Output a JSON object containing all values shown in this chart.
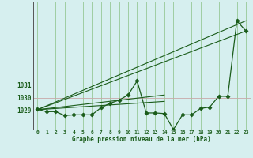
{
  "hours": [
    0,
    1,
    2,
    3,
    4,
    5,
    6,
    7,
    8,
    9,
    10,
    11,
    12,
    13,
    14,
    15,
    16,
    17,
    18,
    19,
    20,
    21,
    22,
    23
  ],
  "main_line": [
    1029.1,
    1028.9,
    1028.9,
    1028.6,
    1028.65,
    1028.65,
    1028.65,
    1029.2,
    1029.55,
    1029.8,
    1030.2,
    1031.3,
    1028.8,
    1028.8,
    1028.75,
    1027.5,
    1028.65,
    1028.65,
    1029.15,
    1029.25,
    1030.1,
    1030.1,
    1036.0,
    1035.2
  ],
  "trend1_x": [
    0,
    23
  ],
  "trend1_y": [
    1029.05,
    1035.2
  ],
  "trend2_x": [
    0,
    23
  ],
  "trend2_y": [
    1029.05,
    1036.0
  ],
  "trend3_x": [
    0,
    14
  ],
  "trend3_y": [
    1029.05,
    1029.7
  ],
  "trend4_x": [
    0,
    14
  ],
  "trend4_y": [
    1029.05,
    1030.2
  ],
  "bg_color": "#d6efef",
  "line_color": "#1a5c1a",
  "grid_h_color": "#c8a8a8",
  "grid_v_color": "#96c896",
  "xlabel": "Graphe pression niveau de la mer (hPa)",
  "ylim": [
    1027.5,
    1037.5
  ],
  "yticks": [
    1029,
    1030,
    1031
  ],
  "xlim": [
    -0.5,
    23.5
  ]
}
